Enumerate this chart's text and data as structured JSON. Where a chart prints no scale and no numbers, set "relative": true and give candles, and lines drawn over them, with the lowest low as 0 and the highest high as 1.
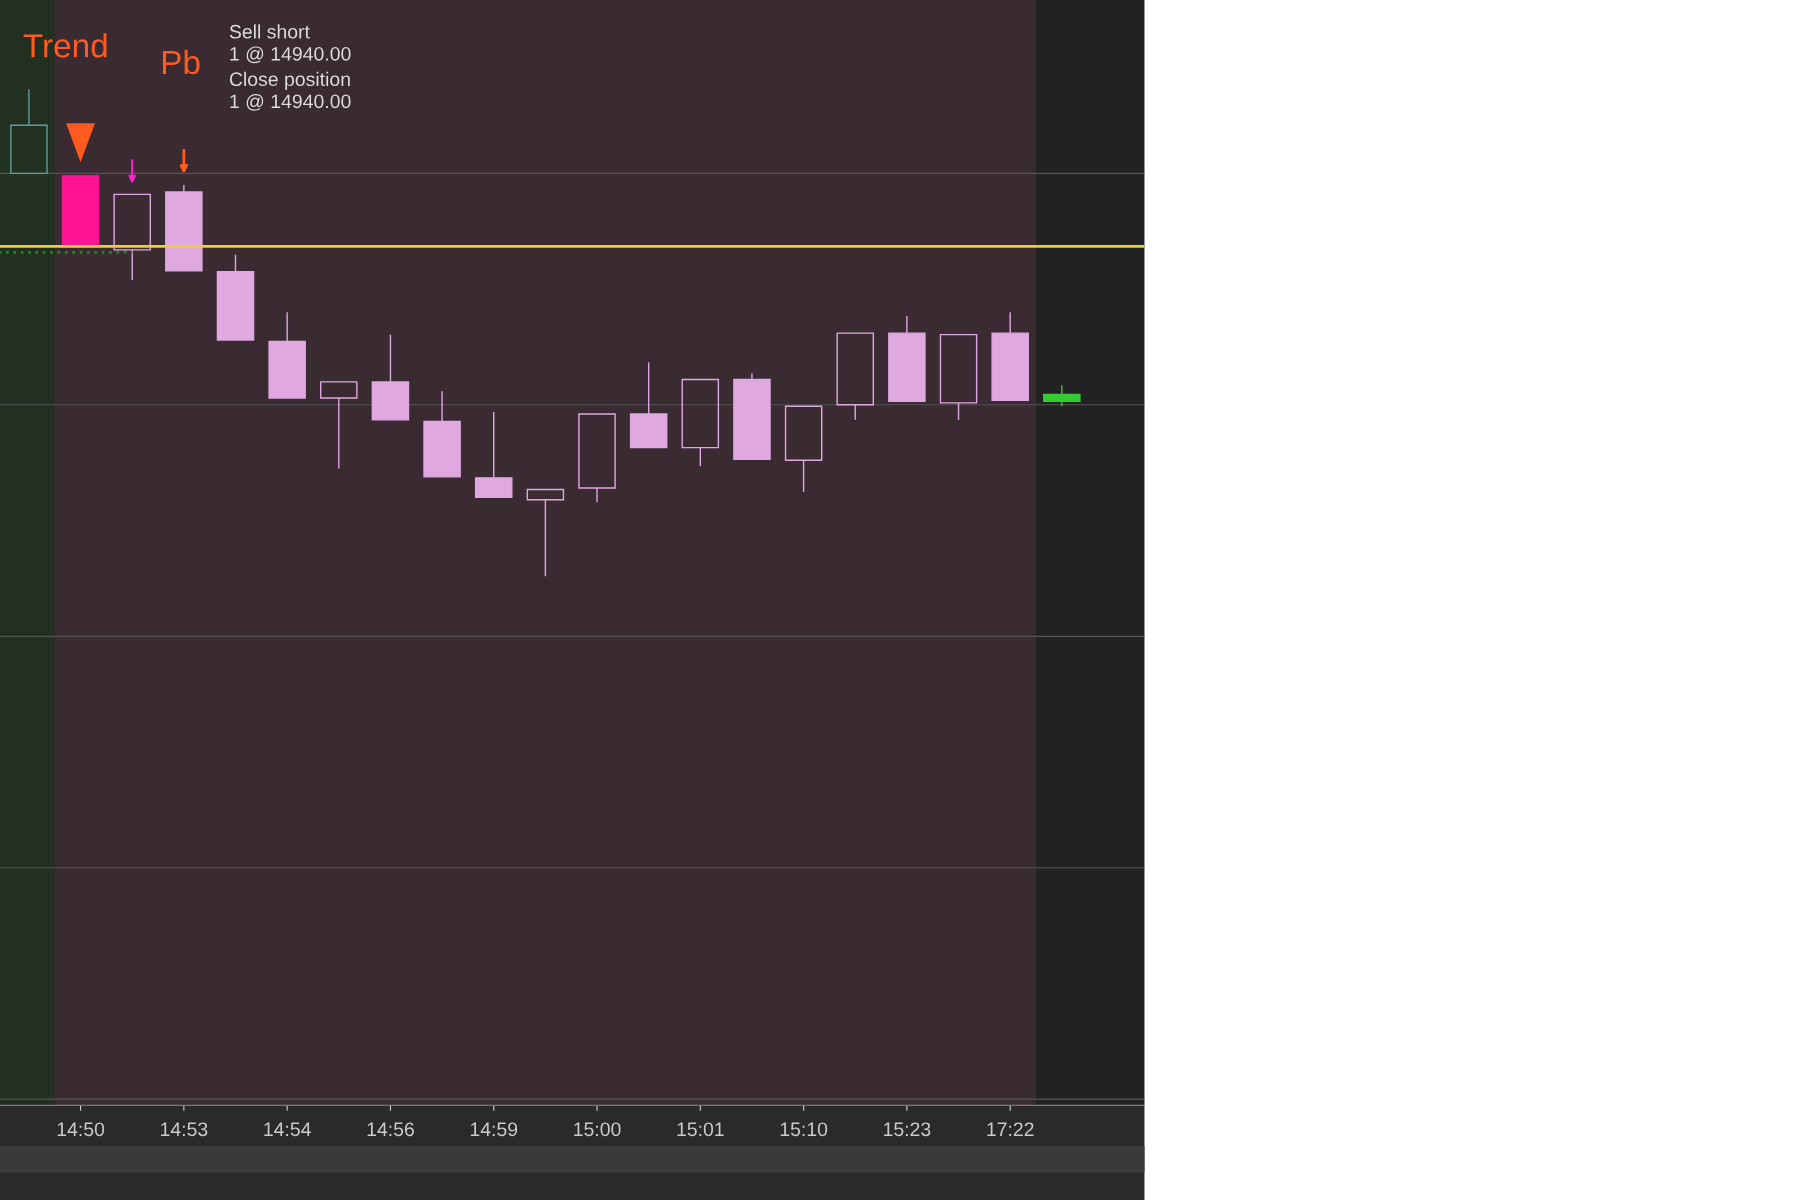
{
  "chart_data": {
    "type": "candlestick",
    "relative": true,
    "categories": [
      null,
      "14:50",
      null,
      "14:53",
      null,
      "14:54",
      null,
      "14:56",
      null,
      "14:59",
      null,
      "15:00",
      null,
      "15:01",
      null,
      "15:10",
      null,
      "15:23",
      null,
      "17:22",
      null
    ],
    "ohlc": [
      [
        0.827,
        1.0,
        0.827,
        0.926
      ],
      [
        0.822,
        0.822,
        0.677,
        0.677
      ],
      [
        0.67,
        0.784,
        0.608,
        0.784
      ],
      [
        0.789,
        0.803,
        0.627,
        0.627
      ],
      [
        0.625,
        0.66,
        0.485,
        0.485
      ],
      [
        0.482,
        0.542,
        0.366,
        0.366
      ],
      [
        0.366,
        0.399,
        0.221,
        0.399
      ],
      [
        0.399,
        0.496,
        0.321,
        0.321
      ],
      [
        0.318,
        0.38,
        0.204,
        0.204
      ],
      [
        0.202,
        0.337,
        0.162,
        0.162
      ],
      [
        0.157,
        0.178,
        0.0,
        0.178
      ],
      [
        0.181,
        0.333,
        0.152,
        0.333
      ],
      [
        0.333,
        0.439,
        0.264,
        0.264
      ],
      [
        0.264,
        0.404,
        0.226,
        0.404
      ],
      [
        0.404,
        0.416,
        0.24,
        0.24
      ],
      [
        0.238,
        0.349,
        0.173,
        0.349
      ],
      [
        0.352,
        0.499,
        0.321,
        0.499
      ],
      [
        0.499,
        0.534,
        0.359,
        0.359
      ],
      [
        0.356,
        0.496,
        0.321,
        0.496
      ],
      [
        0.499,
        0.542,
        0.361,
        0.361
      ],
      [
        0.373,
        0.392,
        0.349,
        0.359
      ]
    ],
    "colors": [
      "#5f9ea0",
      "#ff1493",
      "#e0a8e0",
      "#e0a8e0",
      "#e0a8e0",
      "#e0a8e0",
      "#e0a8e0",
      "#e0a8e0",
      "#e0a8e0",
      "#e0a8e0",
      "#e0a8e0",
      "#e0a8e0",
      "#e0a8e0",
      "#e0a8e0",
      "#e0a8e0",
      "#e0a8e0",
      "#e0a8e0",
      "#e0a8e0",
      "#e0a8e0",
      "#e0a8e0",
      "#33cc33"
    ],
    "series": [
      {
        "type": "line",
        "color": "#1a8a1a",
        "line_style": "dotted",
        "values": [
          0.665,
          0.665,
          0.665,
          null,
          null,
          null,
          null,
          null,
          null,
          null,
          null,
          null,
          null,
          null,
          null,
          null,
          null,
          null,
          null,
          null,
          null
        ]
      }
    ],
    "ref_lines": [
      {
        "axis": "y",
        "value": 0.677,
        "color": "#f0d020",
        "line_style": "solid"
      },
      {
        "axis": "y",
        "value": 0.827,
        "color": "#555555",
        "line_style": "solid"
      },
      {
        "axis": "y",
        "value": 0.352,
        "color": "#555555",
        "line_style": "solid"
      }
    ],
    "annotations": [
      "Trend",
      "Pb",
      "Sell short",
      "1 @ 14940.00",
      "Close position",
      "1 @ 14940.00"
    ]
  }
}
